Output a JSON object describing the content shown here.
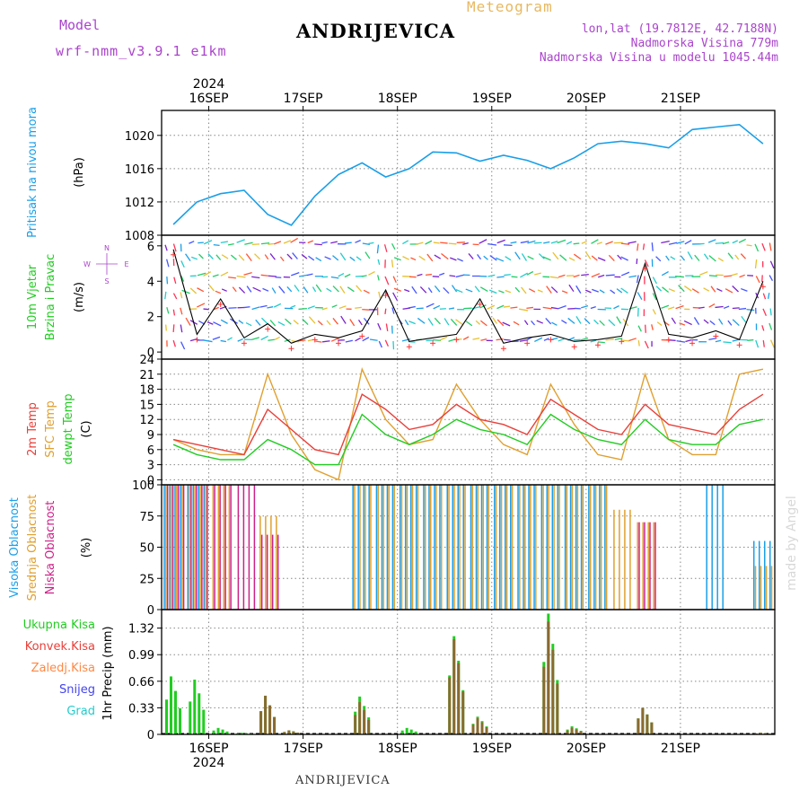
{
  "header": {
    "model_label": "Model",
    "model_name": "wrf-nmm_v3.9.1 e1km",
    "station": "ANDRIJEVICA",
    "product": "Meteogram",
    "lonlat": "lon,lat (19.7812E, 42.7188N)",
    "elevation": "Nadmorska Visina 779m",
    "model_elevation": "Nadmorska Visina u modelu 1045.44m",
    "year": "2024",
    "footer_station": "ANDRIJEVICA",
    "credit": "made by Angel"
  },
  "colors": {
    "pressure": "#1a9fe8",
    "wind_speed": "#000000",
    "t2m": "#e8403a",
    "tsfc": "#e0a030",
    "dewpt": "#22cc22",
    "cloud_high": "#1a9fe8",
    "cloud_mid": "#e0a030",
    "cloud_low": "#cc2288",
    "precip_total": "#22cc22",
    "precip_conv": "#e8403a",
    "precip_frozen": "#ff8844",
    "snow": "#4444ee",
    "graupel": "#22cccc",
    "gust_marker": "#ff3333"
  },
  "chart_data": [
    {
      "type": "line",
      "panel": "pressure",
      "ylabel_lines": [
        "Pritisak na nivou mora",
        "(hPa)"
      ],
      "x": [
        "15SEP 12h",
        "15SEP 18h",
        "16SEP 00h",
        "16SEP 06h",
        "16SEP 12h",
        "16SEP 18h",
        "17SEP 00h",
        "17SEP 06h",
        "17SEP 12h",
        "17SEP 18h",
        "18SEP 00h",
        "18SEP 06h",
        "18SEP 12h",
        "18SEP 18h",
        "19SEP 00h",
        "19SEP 06h",
        "19SEP 12h",
        "19SEP 18h",
        "20SEP 00h",
        "20SEP 06h",
        "20SEP 12h",
        "20SEP 18h",
        "21SEP 00h",
        "21SEP 06h",
        "21SEP 12h",
        "21SEP 18h"
      ],
      "values": [
        1009.3,
        1012.0,
        1013.0,
        1013.4,
        1010.5,
        1009.2,
        1012.7,
        1015.3,
        1016.7,
        1015.0,
        1016.0,
        1018.0,
        1017.9,
        1016.9,
        1017.6,
        1017.0,
        1016.0,
        1017.3,
        1019.0,
        1019.3,
        1019.0,
        1018.5,
        1020.7,
        1021.0,
        1021.3,
        1019.0
      ],
      "ylim": [
        1008,
        1023
      ],
      "yticks": [
        1008,
        1012,
        1016,
        1020
      ]
    },
    {
      "type": "line",
      "panel": "wind",
      "ylabel_lines": [
        "10m Vjetar",
        "Brzina i Pravac",
        "(m/s)"
      ],
      "compass": [
        "N",
        "S",
        "W",
        "E"
      ],
      "x": [
        "15SEP 12h",
        "15SEP 18h",
        "16SEP 00h",
        "16SEP 06h",
        "16SEP 12h",
        "16SEP 18h",
        "17SEP 00h",
        "17SEP 06h",
        "17SEP 12h",
        "17SEP 18h",
        "18SEP 00h",
        "18SEP 06h",
        "18SEP 12h",
        "18SEP 18h",
        "19SEP 00h",
        "19SEP 06h",
        "19SEP 12h",
        "19SEP 18h",
        "20SEP 00h",
        "20SEP 06h",
        "20SEP 12h",
        "20SEP 18h",
        "21SEP 00h",
        "21SEP 06h",
        "21SEP 12h",
        "21SEP 18h"
      ],
      "values": [
        5.8,
        1.0,
        3.0,
        0.8,
        1.6,
        0.5,
        1.0,
        0.8,
        1.2,
        3.5,
        0.6,
        0.8,
        1.0,
        3.0,
        0.5,
        0.8,
        1.0,
        0.6,
        0.7,
        0.9,
        5.0,
        1.0,
        0.8,
        1.2,
        0.7,
        4.0
      ],
      "ylim": [
        -0.4,
        6.6
      ],
      "yticks": [
        0,
        2,
        4,
        6
      ]
    },
    {
      "type": "line",
      "panel": "temperature",
      "ylabel_lines": [
        "2m Temp",
        "SFC Temp",
        "dewpt Temp",
        "(C)"
      ],
      "x": [
        "15SEP 12h",
        "15SEP 18h",
        "16SEP 00h",
        "16SEP 06h",
        "16SEP 12h",
        "16SEP 18h",
        "17SEP 00h",
        "17SEP 06h",
        "17SEP 12h",
        "17SEP 18h",
        "18SEP 00h",
        "18SEP 06h",
        "18SEP 12h",
        "18SEP 18h",
        "19SEP 00h",
        "19SEP 06h",
        "19SEP 12h",
        "19SEP 18h",
        "20SEP 00h",
        "20SEP 06h",
        "20SEP 12h",
        "20SEP 18h",
        "21SEP 00h",
        "21SEP 06h",
        "21SEP 12h",
        "21SEP 18h"
      ],
      "series": [
        {
          "key": "tsfc",
          "values": [
            8.0,
            6.0,
            5.0,
            5.0,
            21.0,
            9.0,
            2.0,
            0.0,
            22.0,
            12.0,
            7.0,
            8.0,
            19.0,
            12.0,
            7.0,
            5.0,
            19.0,
            11.0,
            5.0,
            4.0,
            21.0,
            8.0,
            5.0,
            5.0,
            21.0,
            22.0
          ]
        },
        {
          "key": "t2m",
          "values": [
            8.0,
            7.0,
            6.0,
            5.0,
            14.0,
            10.0,
            6.0,
            5.0,
            17.0,
            14.0,
            10.0,
            11.0,
            15.0,
            12.0,
            11.0,
            9.0,
            16.0,
            13.0,
            10.0,
            9.0,
            15.0,
            11.0,
            10.0,
            9.0,
            14.0,
            17.0
          ]
        },
        {
          "key": "dewpt",
          "values": [
            7.0,
            5.0,
            4.0,
            4.0,
            8.0,
            6.0,
            3.0,
            3.0,
            13.0,
            9.0,
            7.0,
            9.0,
            12.0,
            10.0,
            9.0,
            7.0,
            13.0,
            10.0,
            8.0,
            7.0,
            12.0,
            8.0,
            7.0,
            7.0,
            11.0,
            12.0
          ]
        }
      ],
      "ylim": [
        -1,
        24
      ],
      "yticks": [
        0,
        3,
        6,
        9,
        12,
        15,
        18,
        21,
        24
      ]
    },
    {
      "type": "bar",
      "panel": "cloud",
      "ylabel_lines": [
        "Visoka Oblacnost",
        "Srednja Oblacnost",
        "Niska Oblacnost",
        "(%)"
      ],
      "x": [
        "15SEP 12h",
        "15SEP 18h",
        "16SEP 00h",
        "16SEP 06h",
        "16SEP 12h",
        "16SEP 18h",
        "17SEP 00h",
        "17SEP 06h",
        "17SEP 12h",
        "17SEP 18h",
        "18SEP 00h",
        "18SEP 06h",
        "18SEP 12h",
        "18SEP 18h",
        "19SEP 00h",
        "19SEP 06h",
        "19SEP 12h",
        "19SEP 18h",
        "20SEP 00h",
        "20SEP 06h",
        "20SEP 12h",
        "20SEP 18h",
        "21SEP 00h",
        "21SEP 06h",
        "21SEP 12h",
        "21SEP 18h"
      ],
      "series": [
        {
          "key": "cloud_high",
          "values": [
            100,
            100,
            0,
            0,
            0,
            0,
            0,
            0,
            100,
            100,
            100,
            100,
            100,
            100,
            100,
            100,
            100,
            100,
            100,
            0,
            0,
            0,
            0,
            100,
            0,
            55
          ]
        },
        {
          "key": "cloud_mid",
          "values": [
            100,
            100,
            100,
            0,
            75,
            0,
            0,
            0,
            100,
            100,
            100,
            100,
            100,
            100,
            100,
            100,
            100,
            100,
            100,
            80,
            70,
            0,
            0,
            0,
            0,
            35
          ]
        },
        {
          "key": "cloud_low",
          "values": [
            100,
            100,
            100,
            100,
            60,
            0,
            0,
            0,
            0,
            0,
            0,
            0,
            0,
            0,
            0,
            0,
            0,
            0,
            0,
            0,
            70,
            0,
            0,
            0,
            0,
            0
          ]
        }
      ],
      "ylim": [
        0,
        100
      ],
      "yticks": [
        0,
        25,
        50,
        75,
        100
      ]
    },
    {
      "type": "bar",
      "panel": "precip",
      "ylabel_lines": [
        "1hr Precip",
        "(mm)"
      ],
      "legend": [
        "Ukupna Kisa",
        "Konvek.Kisa",
        "Zaledj.Kisa",
        "Snijeg",
        "Grad"
      ],
      "x": [
        "15SEP 12h",
        "15SEP 18h",
        "16SEP 00h",
        "16SEP 06h",
        "16SEP 12h",
        "16SEP 18h",
        "17SEP 00h",
        "17SEP 06h",
        "17SEP 12h",
        "17SEP 18h",
        "18SEP 00h",
        "18SEP 06h",
        "18SEP 12h",
        "18SEP 18h",
        "19SEP 00h",
        "19SEP 06h",
        "19SEP 12h",
        "19SEP 18h",
        "20SEP 00h",
        "20SEP 06h",
        "20SEP 12h",
        "20SEP 18h",
        "21SEP 00h",
        "21SEP 06h",
        "21SEP 12h",
        "21SEP 18h"
      ],
      "series": [
        {
          "key": "precip_total",
          "values": [
            0.72,
            0.68,
            0.08,
            0.02,
            0.48,
            0.05,
            0.0,
            0.0,
            0.47,
            0.0,
            0.08,
            0.0,
            1.22,
            0.22,
            0.0,
            0.0,
            1.5,
            0.1,
            0.0,
            0.0,
            0.33,
            0.0,
            0.0,
            0.0,
            0.0,
            0.02
          ]
        },
        {
          "key": "precip_conv",
          "values": [
            0.0,
            0.0,
            0.0,
            0.0,
            0.48,
            0.05,
            0.0,
            0.0,
            0.4,
            0.0,
            0.0,
            0.0,
            1.18,
            0.2,
            0.0,
            0.0,
            1.4,
            0.08,
            0.0,
            0.0,
            0.33,
            0.0,
            0.0,
            0.0,
            0.0,
            0.02
          ]
        }
      ],
      "ylim": [
        0,
        1.55
      ],
      "yticks": [
        0,
        0.33,
        0.66,
        0.99,
        1.32
      ]
    }
  ],
  "time_axis": {
    "top_labels": [
      "16SEP",
      "17SEP",
      "18SEP",
      "19SEP",
      "20SEP",
      "21SEP"
    ],
    "bottom_labels": [
      "16SEP",
      "17SEP",
      "18SEP",
      "19SEP",
      "20SEP",
      "21SEP"
    ]
  }
}
